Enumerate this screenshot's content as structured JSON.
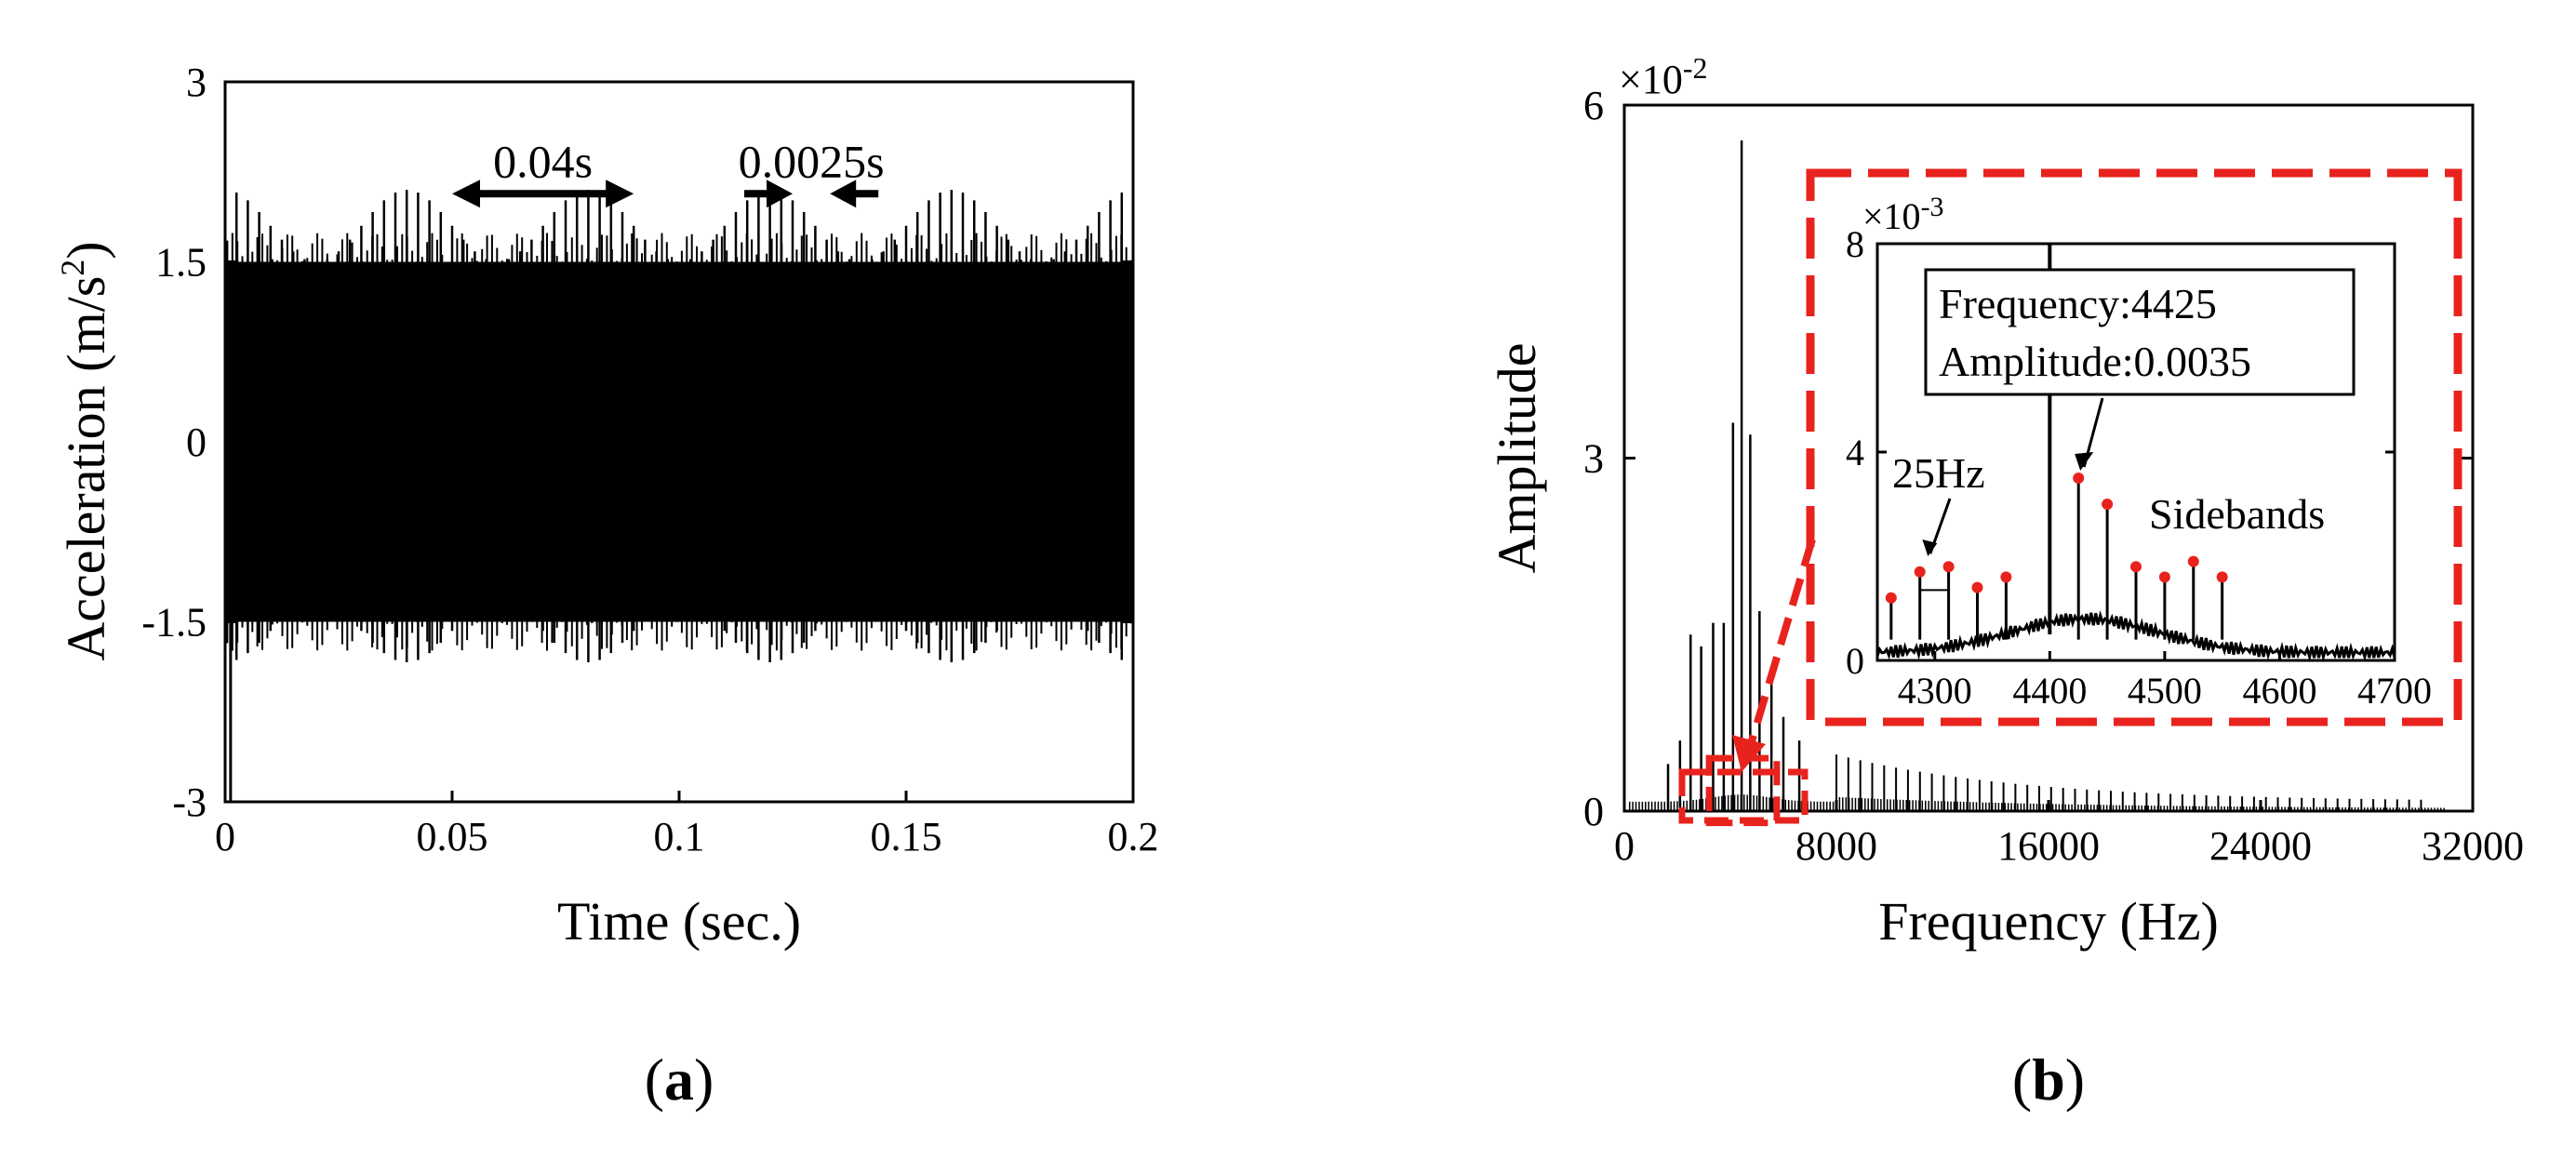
{
  "chart_data": [
    {
      "type": "line",
      "panel_label": "a",
      "xlabel": "Time (sec.)",
      "ylabel_prefix": "Acceleration (m/s",
      "ylabel_sup": "2",
      "ylabel_suffix": ")",
      "xlim": [
        0,
        0.2
      ],
      "ylim": [
        -3,
        3
      ],
      "xticks": [
        0,
        0.05,
        0.1,
        0.15,
        0.2
      ],
      "xtick_labels": [
        "0",
        "0.05",
        "0.1",
        "0.15",
        "0.2"
      ],
      "yticks": [
        -3,
        -1.5,
        0,
        1.5,
        3
      ],
      "ytick_labels": [
        "-3",
        "-1.5",
        "0",
        "1.5",
        "3"
      ],
      "signal": {
        "envelope": 1.5,
        "spike_period_s": 0.0025,
        "spike_peak": 2.0,
        "modulation_period_s": 0.04
      },
      "annotations": [
        {
          "text": "0.04s",
          "x_start": 0.05,
          "x_end": 0.09,
          "y": 2.3
        },
        {
          "text": "0.0025s",
          "x_left": 0.125,
          "x_right": 0.1275,
          "y": 2.3
        }
      ]
    },
    {
      "type": "line",
      "panel_label": "b",
      "xlabel": "Frequency (Hz)",
      "ylabel": "Amplitude",
      "scale_base": "×10",
      "scale_exp": "-2",
      "xlim": [
        0,
        32000
      ],
      "ylim": [
        0,
        6
      ],
      "xticks": [
        0,
        8000,
        16000,
        24000,
        32000
      ],
      "xtick_labels": [
        "0",
        "8000",
        "16000",
        "24000",
        "32000"
      ],
      "yticks": [
        0,
        3,
        6
      ],
      "ytick_labels": [
        "0",
        "3",
        "6"
      ],
      "peaks": [
        {
          "x": 4425,
          "y": 5.7
        },
        {
          "x": 4100,
          "y": 3.3
        },
        {
          "x": 4750,
          "y": 3.2
        },
        {
          "x": 5100,
          "y": 1.7
        },
        {
          "x": 3750,
          "y": 1.6
        },
        {
          "x": 3350,
          "y": 1.6
        },
        {
          "x": 5550,
          "y": 1.2
        },
        {
          "x": 2900,
          "y": 1.4
        },
        {
          "x": 2500,
          "y": 1.5
        },
        {
          "x": 2100,
          "y": 0.6
        },
        {
          "x": 1650,
          "y": 0.4
        },
        {
          "x": 6000,
          "y": 0.8
        },
        {
          "x": 6600,
          "y": 0.6
        }
      ],
      "inset": {
        "xlim": [
          4250,
          4700
        ],
        "ylim": [
          0,
          8
        ],
        "scale_base": "×10",
        "scale_exp": "-3",
        "xticks": [
          4300,
          4400,
          4500,
          4600,
          4700
        ],
        "xtick_labels": [
          "4300",
          "4400",
          "4500",
          "4600",
          "4700"
        ],
        "yticks": [
          0,
          4,
          8
        ],
        "ytick_labels": [
          "0",
          "4",
          "8"
        ],
        "main_peak": {
          "x": 4400,
          "y": 8.0
        },
        "sidebands": [
          {
            "x": 4262,
            "y": 1.2
          },
          {
            "x": 4287,
            "y": 1.7
          },
          {
            "x": 4312,
            "y": 1.8
          },
          {
            "x": 4337,
            "y": 1.4
          },
          {
            "x": 4362,
            "y": 1.6
          },
          {
            "x": 4425,
            "y": 3.5
          },
          {
            "x": 4450,
            "y": 3.0
          },
          {
            "x": 4475,
            "y": 1.8
          },
          {
            "x": 4500,
            "y": 1.6
          },
          {
            "x": 4525,
            "y": 1.9
          },
          {
            "x": 4550,
            "y": 1.6
          }
        ],
        "box_line1": "Frequency:4425",
        "box_line2": "Amplitude:0.0035",
        "label_25hz": "25Hz",
        "label_sidebands": "Sidebands",
        "marker_color": "#e8231e",
        "frame_color": "#e8231e"
      }
    }
  ]
}
